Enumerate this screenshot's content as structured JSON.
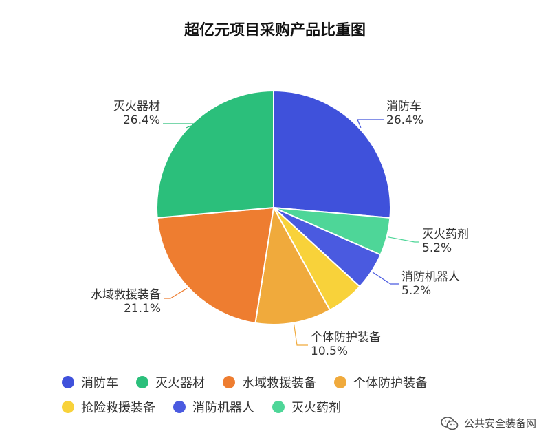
{
  "chart_data": {
    "type": "pie",
    "title": "超亿元项目采购产品比重图",
    "slices": [
      {
        "name": "消防车",
        "value": 26.4,
        "label": "26.4%",
        "color": "#3f51db"
      },
      {
        "name": "灭火药剂",
        "value": 5.2,
        "label": "5.2%",
        "color": "#4ed698"
      },
      {
        "name": "消防机器人",
        "value": 5.2,
        "label": "5.2%",
        "color": "#4a5ae0"
      },
      {
        "name": "抢险救援装备",
        "value": 5.2,
        "label": "",
        "color": "#f8d23a"
      },
      {
        "name": "个体防护装备",
        "value": 10.5,
        "label": "10.5%",
        "color": "#f0aa3c"
      },
      {
        "name": "水域救援装备",
        "value": 21.1,
        "label": "21.1%",
        "color": "#ee7d30"
      },
      {
        "name": "灭火器材",
        "value": 26.4,
        "label": "26.4%",
        "color": "#2bbf7b"
      }
    ],
    "legend": {
      "placement": "bottom",
      "items": [
        {
          "name": "消防车",
          "color": "#3f51db"
        },
        {
          "name": "灭火器材",
          "color": "#2bbf7b"
        },
        {
          "name": "水域救援装备",
          "color": "#ee7d30"
        },
        {
          "name": "个体防护装备",
          "color": "#f0aa3c"
        },
        {
          "name": "抢险救援装备",
          "color": "#f8d23a"
        },
        {
          "name": "消防机器人",
          "color": "#4a5ae0"
        },
        {
          "name": "灭火药剂",
          "color": "#4ed698"
        }
      ]
    }
  },
  "watermark": {
    "text": "公共安全装备网",
    "icon": "wechat-icon"
  }
}
